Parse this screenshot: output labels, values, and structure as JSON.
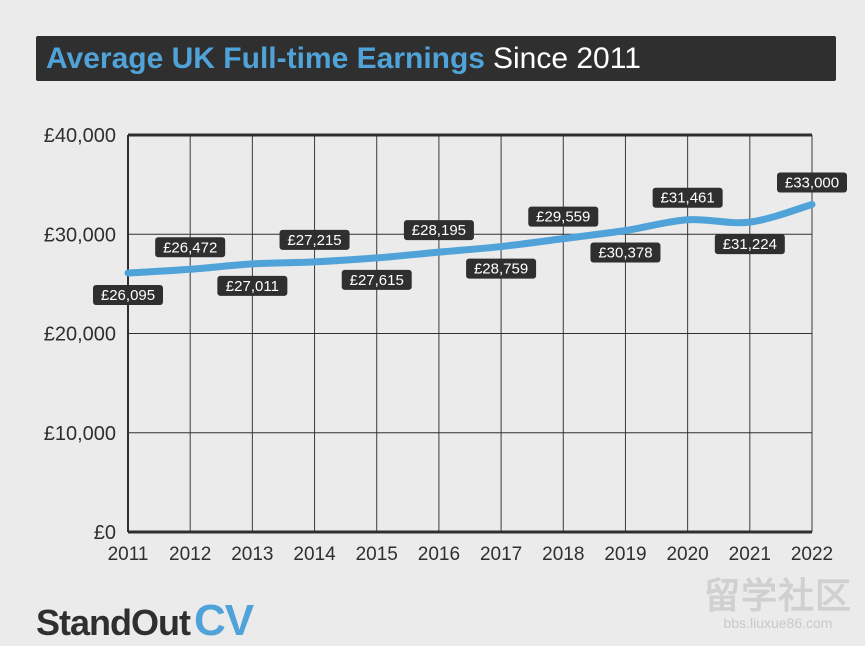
{
  "title": {
    "main": "Average UK Full-time Earnings",
    "sub": "Since 2011"
  },
  "brand": {
    "part1": "StandOut",
    "part2": "CV"
  },
  "watermark": {
    "top": "留学社区",
    "bottom": "bbs.liuxue86.com"
  },
  "colors": {
    "line": "#4fa3d8",
    "label_bg": "#2f2f2f",
    "label_text": "#ffffff",
    "axis": "#2f2f2f",
    "grid": "#3a3a3a",
    "background": "#ebebeb"
  },
  "chart_data": {
    "type": "line",
    "categories": [
      "2011",
      "2012",
      "2013",
      "2014",
      "2015",
      "2016",
      "2017",
      "2018",
      "2019",
      "2020",
      "2021",
      "2022"
    ],
    "values": [
      26095,
      26472,
      27011,
      27215,
      27615,
      28195,
      28759,
      29559,
      30378,
      31461,
      31224,
      33000
    ],
    "value_labels": [
      "£26,095",
      "£26,472",
      "£27,011",
      "£27,215",
      "£27,615",
      "£28,195",
      "£28,759",
      "£29,559",
      "£30,378",
      "£31,461",
      "£31,224",
      "£33,000"
    ],
    "label_positions": [
      "below",
      "above",
      "below",
      "above",
      "below",
      "above",
      "below",
      "above",
      "below",
      "above",
      "below",
      "above"
    ],
    "ylim": [
      0,
      40000
    ],
    "yticks": [
      0,
      10000,
      20000,
      30000,
      40000
    ],
    "ytick_labels": [
      "£0",
      "£10,000",
      "£20,000",
      "£30,000",
      "£40,000"
    ],
    "grid": true,
    "legend": false
  }
}
